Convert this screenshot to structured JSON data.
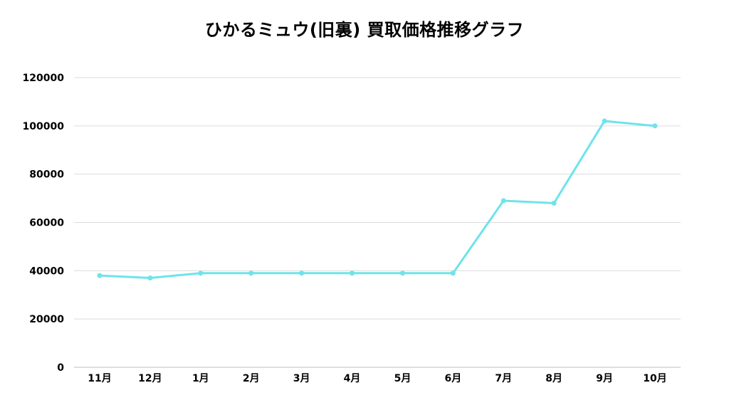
{
  "chart_data": {
    "type": "line",
    "title": "ひかるミュウ(旧裏) 買取価格推移グラフ",
    "xlabel": "",
    "ylabel": "",
    "categories": [
      "11月",
      "12月",
      "1月",
      "2月",
      "3月",
      "4月",
      "5月",
      "6月",
      "7月",
      "8月",
      "9月",
      "10月"
    ],
    "series": [
      {
        "values": [
          38000,
          37000,
          39000,
          39000,
          39000,
          39000,
          39000,
          39000,
          69000,
          68000,
          102000,
          100000
        ],
        "color": "#6fe3ea"
      }
    ],
    "ylim": [
      0,
      120000
    ],
    "yticks": [
      0,
      20000,
      40000,
      60000,
      80000,
      100000,
      120000
    ],
    "grid": true,
    "legend": "none"
  }
}
